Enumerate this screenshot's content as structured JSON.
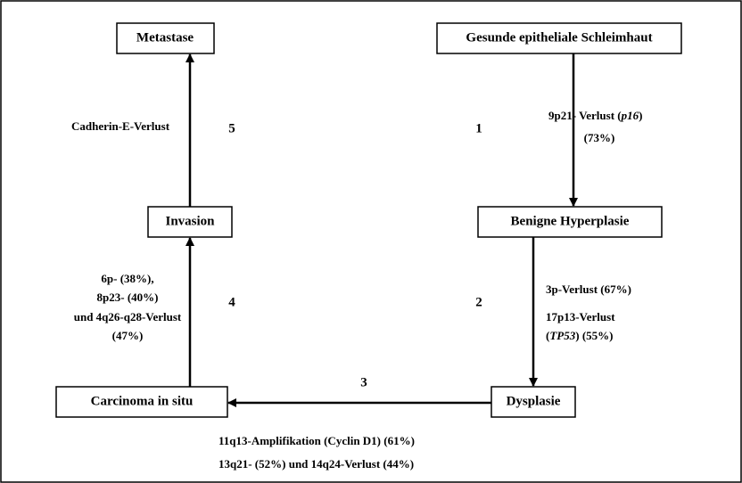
{
  "nodes": [
    {
      "label": "Metastase"
    },
    {
      "label": "Gesunde epitheliale Schleimhaut"
    },
    {
      "label": "Benigne Hyperplasie"
    },
    {
      "label": "Invasion"
    },
    {
      "label": "Carcinoma in situ"
    },
    {
      "label": "Dysplasie"
    }
  ],
  "steps": [
    {
      "number": "1",
      "lines": [
        [
          "9p21- Verlust (",
          "p16",
          ")"
        ],
        [
          "(73%)"
        ]
      ]
    },
    {
      "number": "2",
      "lines": [
        [
          "3p-Verlust (67%)"
        ],
        [
          "17p13-Verlust"
        ],
        [
          "(",
          "TP53",
          ") (55%)"
        ]
      ]
    },
    {
      "number": "3",
      "lines": [
        [
          "11q13-Amplifikation (Cyclin D1) (61%)"
        ],
        [
          "13q21- (52%) und 14q24-Verlust (44%)"
        ]
      ]
    },
    {
      "number": "4",
      "lines": [
        [
          "6p- (38%),"
        ],
        [
          "8p23- (40%)"
        ],
        [
          "und 4q26-q28-Verlust"
        ],
        [
          "(47%)"
        ]
      ]
    },
    {
      "number": "5",
      "lines": [
        [
          "Cadherin-E-Verlust"
        ]
      ]
    }
  ]
}
